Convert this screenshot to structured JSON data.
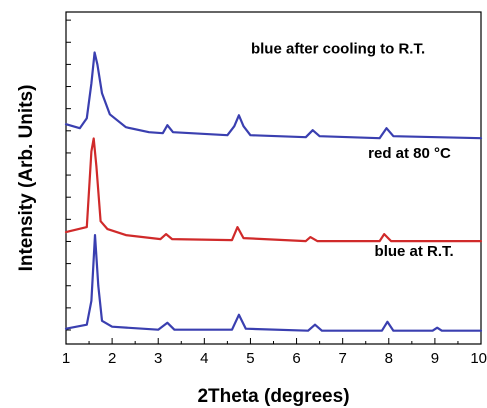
{
  "chart_data": {
    "type": "line",
    "xlabel": "2Theta (degrees)",
    "ylabel": "Intensity (Arb. Units)",
    "xlim": [
      1,
      10
    ],
    "x_ticks": [
      "1",
      "2",
      "3",
      "4",
      "5",
      "6",
      "7",
      "8",
      "9",
      "10"
    ],
    "y_tick_labels_shown": false,
    "grid": false,
    "legend": "none",
    "series": [
      {
        "name": "blue after cooling to R.T.",
        "color": "#3a3fb0",
        "baseline": 0.62,
        "values": [
          [
            1.0,
            0.14
          ],
          [
            1.3,
            0.1
          ],
          [
            1.45,
            0.2
          ],
          [
            1.55,
            0.55
          ],
          [
            1.62,
            0.86
          ],
          [
            1.68,
            0.74
          ],
          [
            1.78,
            0.45
          ],
          [
            1.95,
            0.24
          ],
          [
            2.3,
            0.11
          ],
          [
            2.8,
            0.06
          ],
          [
            3.1,
            0.05
          ],
          [
            3.2,
            0.13
          ],
          [
            3.32,
            0.06
          ],
          [
            4.5,
            0.03
          ],
          [
            4.65,
            0.12
          ],
          [
            4.75,
            0.23
          ],
          [
            4.85,
            0.12
          ],
          [
            5.0,
            0.03
          ],
          [
            6.2,
            0.01
          ],
          [
            6.35,
            0.08
          ],
          [
            6.5,
            0.02
          ],
          [
            7.8,
            0.0
          ],
          [
            7.95,
            0.1
          ],
          [
            8.1,
            0.02
          ],
          [
            10.0,
            0.0
          ]
        ]
      },
      {
        "name": "red at 80 °C",
        "color": "#d02a2a",
        "baseline": 0.31,
        "values": [
          [
            1.0,
            0.09
          ],
          [
            1.45,
            0.14
          ],
          [
            1.55,
            0.9
          ],
          [
            1.6,
            1.03
          ],
          [
            1.66,
            0.75
          ],
          [
            1.75,
            0.2
          ],
          [
            1.9,
            0.12
          ],
          [
            2.3,
            0.06
          ],
          [
            3.05,
            0.02
          ],
          [
            3.17,
            0.07
          ],
          [
            3.3,
            0.02
          ],
          [
            4.6,
            0.01
          ],
          [
            4.72,
            0.14
          ],
          [
            4.85,
            0.03
          ],
          [
            6.2,
            0.0
          ],
          [
            6.3,
            0.04
          ],
          [
            6.45,
            0.0
          ],
          [
            7.8,
            0.0
          ],
          [
            7.9,
            0.07
          ],
          [
            8.05,
            0.0
          ],
          [
            10.0,
            0.0
          ]
        ]
      },
      {
        "name": "blue at R.T.",
        "color": "#3a3fb0",
        "baseline": 0.04,
        "values": [
          [
            1.0,
            0.02
          ],
          [
            1.45,
            0.06
          ],
          [
            1.55,
            0.3
          ],
          [
            1.63,
            0.96
          ],
          [
            1.7,
            0.45
          ],
          [
            1.78,
            0.1
          ],
          [
            2.0,
            0.04
          ],
          [
            3.0,
            0.01
          ],
          [
            3.2,
            0.08
          ],
          [
            3.35,
            0.01
          ],
          [
            4.6,
            0.01
          ],
          [
            4.75,
            0.16
          ],
          [
            4.9,
            0.02
          ],
          [
            6.25,
            0.0
          ],
          [
            6.4,
            0.06
          ],
          [
            6.55,
            0.0
          ],
          [
            7.85,
            0.0
          ],
          [
            7.97,
            0.09
          ],
          [
            8.1,
            0.0
          ],
          [
            8.95,
            0.0
          ],
          [
            9.05,
            0.03
          ],
          [
            9.15,
            0.0
          ],
          [
            10.0,
            0.0
          ]
        ]
      }
    ],
    "annotations": [
      {
        "text": "blue after cooling to R.T.",
        "x": 6.9,
        "y": 0.875
      },
      {
        "text": "red at 80 °C",
        "x": 8.45,
        "y": 0.56
      },
      {
        "text": "blue at R.T.",
        "x": 8.55,
        "y": 0.265
      }
    ]
  }
}
